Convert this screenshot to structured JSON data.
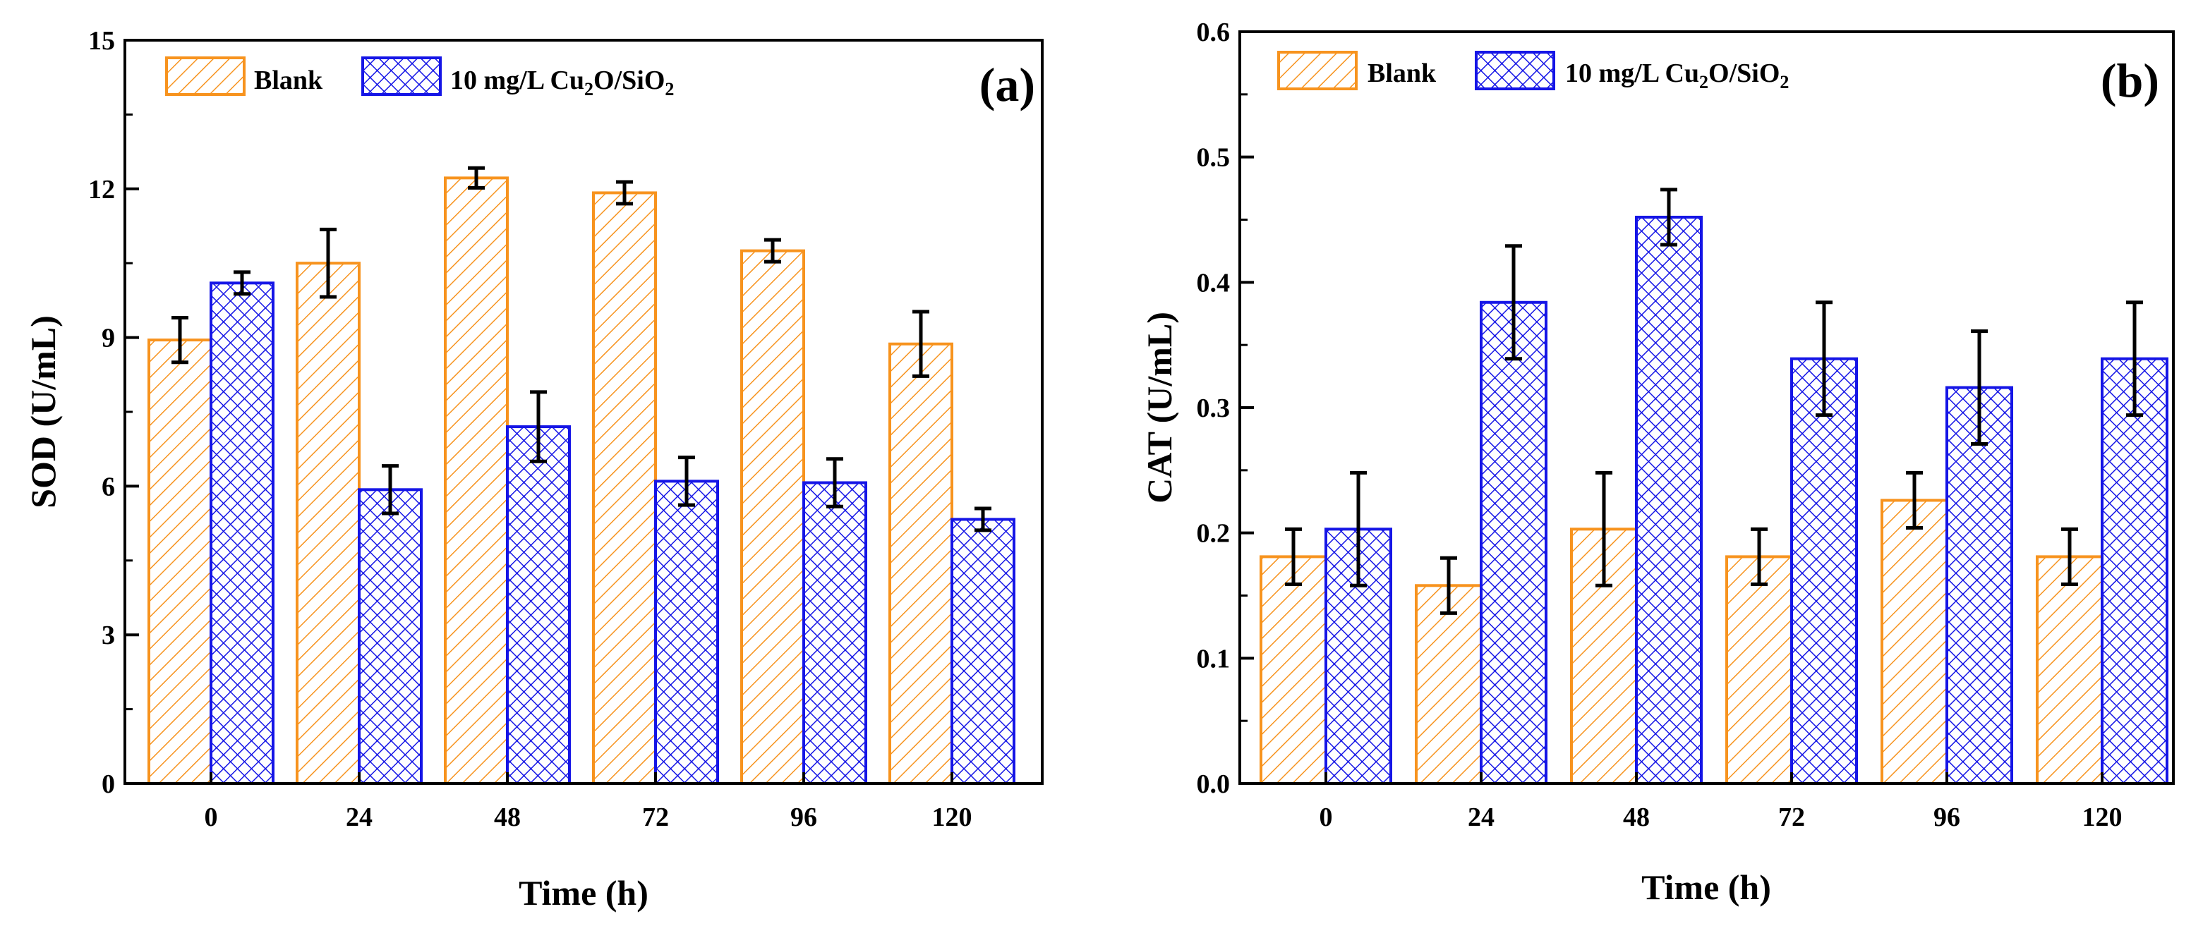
{
  "chart_data": [
    {
      "type": "bar",
      "panel_label": "(a)",
      "title": "",
      "xlabel": "Time (h)",
      "ylabel": "SOD (U/mL)",
      "categories": [
        "0",
        "24",
        "48",
        "72",
        "96",
        "120"
      ],
      "ylim": [
        0,
        15
      ],
      "yticks": [
        0,
        3,
        6,
        9,
        12,
        15
      ],
      "ytick_labels": [
        "0",
        "3",
        "6",
        "9",
        "12",
        "15"
      ],
      "grid": false,
      "legend_position": "top-left",
      "series": [
        {
          "name": "Blank",
          "legend_main": "Blank",
          "values": [
            8.95,
            10.5,
            12.22,
            11.92,
            10.75,
            8.87
          ],
          "errors": [
            0.45,
            0.68,
            0.2,
            0.22,
            0.22,
            0.65
          ],
          "color": "#F7931E",
          "pattern": "diagonal-hatch"
        },
        {
          "name": "10 mg/L Cu2O/SiO2",
          "legend_main": "10 mg/L Cu",
          "legend_sub1": "2",
          "legend_mid": "O/SiO",
          "legend_sub2": "2",
          "values": [
            10.1,
            5.93,
            7.2,
            6.1,
            6.07,
            5.33
          ],
          "errors": [
            0.22,
            0.48,
            0.7,
            0.48,
            0.48,
            0.22
          ],
          "color": "#1515E6",
          "pattern": "crosshatch"
        }
      ]
    },
    {
      "type": "bar",
      "panel_label": "(b)",
      "title": "",
      "xlabel": "Time (h)",
      "ylabel": "CAT (U/mL)",
      "categories": [
        "0",
        "24",
        "48",
        "72",
        "96",
        "120"
      ],
      "ylim": [
        0,
        0.6
      ],
      "yticks": [
        0,
        0.1,
        0.2,
        0.3,
        0.4,
        0.5,
        0.6
      ],
      "ytick_labels": [
        "0.0",
        "0.1",
        "0.2",
        "0.3",
        "0.4",
        "0.5",
        "0.6"
      ],
      "grid": false,
      "legend_position": "top-left",
      "series": [
        {
          "name": "Blank",
          "legend_main": "Blank",
          "values": [
            0.181,
            0.158,
            0.203,
            0.181,
            0.226,
            0.181
          ],
          "errors": [
            0.022,
            0.022,
            0.045,
            0.022,
            0.022,
            0.022
          ],
          "color": "#F7931E",
          "pattern": "diagonal-hatch"
        },
        {
          "name": "10 mg/L Cu2O/SiO2",
          "legend_main": "10 mg/L Cu",
          "legend_sub1": "2",
          "legend_mid": "O/SiO",
          "legend_sub2": "2",
          "values": [
            0.203,
            0.384,
            0.452,
            0.339,
            0.316,
            0.339
          ],
          "errors": [
            0.045,
            0.045,
            0.022,
            0.045,
            0.045,
            0.045
          ],
          "color": "#1515E6",
          "pattern": "crosshatch"
        }
      ]
    }
  ]
}
